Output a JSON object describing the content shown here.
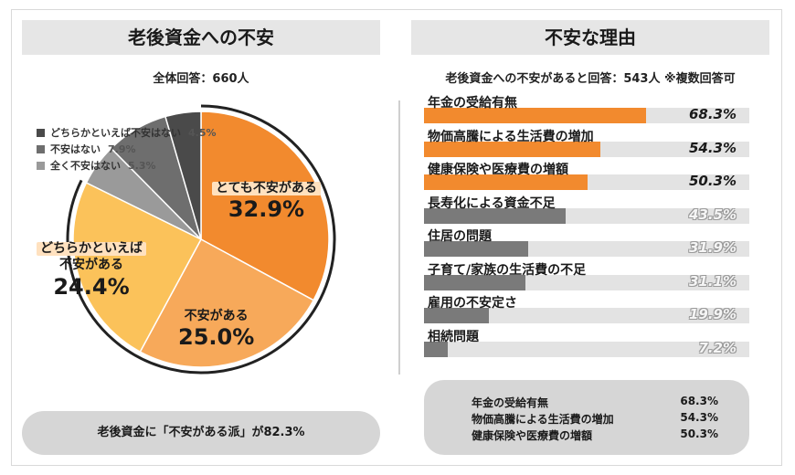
{
  "left_panel": {
    "title": "老後資金への不安",
    "subtitle": "全体回答：660人",
    "summary": "老後資金に「不安がある派」が82.3%"
  },
  "right_panel": {
    "title": "不安な理由",
    "subtitle": "老後資金への不安があると回答：543人 ※複数回答可",
    "summary": [
      {
        "label": "年金の受給有無",
        "value": "68.3%"
      },
      {
        "label": "物価高騰による生活費の増加",
        "value": "54.3%"
      },
      {
        "label": "健康保険や医療費の増額",
        "value": "50.3%"
      }
    ]
  },
  "colors": {
    "orange_dark": "#f28a2e",
    "orange_mid": "#f7a95a",
    "yellow": "#fbc25a",
    "gray_dark": "#4a4a4a",
    "gray_mid": "#6e6e6e",
    "gray_light": "#9a9a9a",
    "bar_gray": "#7a7a7a",
    "track": "#e3e3e3"
  },
  "chart_data": [
    {
      "type": "pie",
      "slices": [
        {
          "label": "とても不安がある",
          "value": 32.9,
          "display": "32.9%",
          "color": "#f28a2e"
        },
        {
          "label": "不安がある",
          "value": 25.0,
          "display": "25.0%",
          "color": "#f7a95a"
        },
        {
          "label": "どちらかといえば不安がある",
          "value": 24.4,
          "display": "24.4%",
          "color": "#fbc25a"
        },
        {
          "label": "全く不安はない",
          "value": 5.3,
          "display": "5.3%",
          "color": "#9a9a9a"
        },
        {
          "label": "不安はない",
          "value": 7.9,
          "display": "7.9%",
          "color": "#6e6e6e"
        },
        {
          "label": "どちらかといえば不安はない",
          "value": 4.5,
          "display": "4.5%",
          "color": "#4a4a4a"
        }
      ],
      "legend": [
        {
          "label": "どちらかといえば不安はない",
          "value": "4.5%",
          "color": "#4a4a4a"
        },
        {
          "label": "不安はない",
          "value": "7.9%",
          "color": "#6e6e6e"
        },
        {
          "label": "全く不安はない",
          "value": "5.3%",
          "color": "#9a9a9a"
        }
      ],
      "big_labels": [
        {
          "line1": "とても不安がある",
          "line2": "",
          "value": "32.9%",
          "highlight": true
        },
        {
          "line1": "不安がある",
          "line2": "",
          "value": "25.0%",
          "highlight": false
        },
        {
          "line1": "どちらかといえば",
          "line2": "不安がある",
          "value": "24.4%",
          "highlight": true
        }
      ],
      "legend_placement": "top-left"
    },
    {
      "type": "bar",
      "orientation": "horizontal",
      "categories": [
        "年金の受給有無",
        "物価高騰による生活費の増加",
        "健康保険や医療費の増額",
        "長寿化による資金不足",
        "住居の問題",
        "子育て/家族の生活費の不足",
        "雇用の不安定さ",
        "相続問題"
      ],
      "values": [
        68.3,
        54.3,
        50.3,
        43.5,
        31.9,
        31.1,
        19.9,
        7.2
      ],
      "labels": [
        "68.3%",
        "54.3%",
        "50.3%",
        "43.5%",
        "31.9%",
        "31.1%",
        "19.9%",
        "7.2%"
      ],
      "highlight_top": 3,
      "xlim": [
        0,
        100
      ]
    }
  ]
}
